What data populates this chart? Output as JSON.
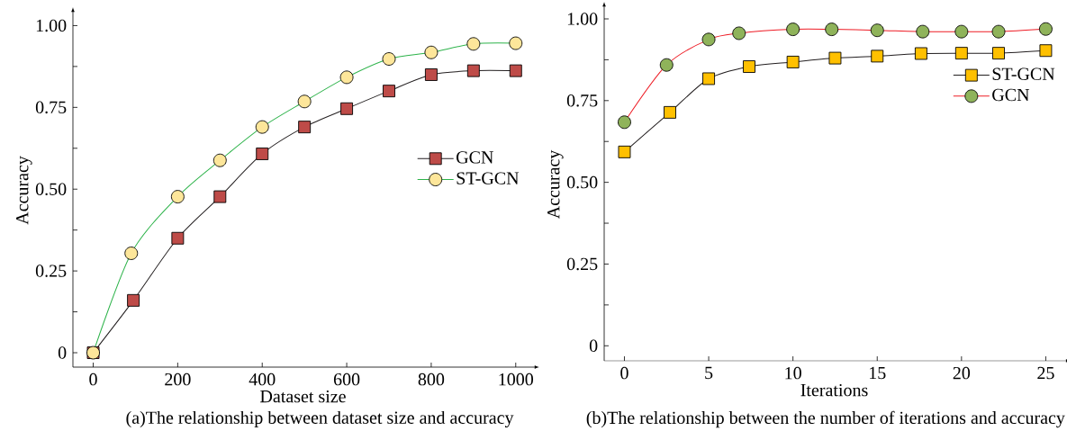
{
  "chart_data": [
    {
      "type": "line",
      "xlabel": "Dataset size",
      "ylabel": "Accuracy",
      "annotations": [
        "(a)The relationship between dataset size and accuracy"
      ],
      "xlim": [
        -48,
        1041
      ],
      "xticks": [
        0,
        200,
        400,
        600,
        800,
        1000
      ],
      "ylim": [
        -0.044,
        1.037
      ],
      "yticks": [
        {
          "value": 0,
          "label": "0"
        },
        {
          "value": 0.125,
          "label": null
        },
        {
          "value": 0.25,
          "label": "0.25"
        },
        {
          "value": 0.375,
          "label": null
        },
        {
          "value": 0.5,
          "label": "0.50"
        },
        {
          "value": 0.625,
          "label": null
        },
        {
          "value": 0.75,
          "label": "0.75"
        },
        {
          "value": 0.875,
          "label": null
        },
        {
          "value": 1,
          "label": "1.00"
        }
      ],
      "legend": "right",
      "series": [
        {
          "name": "GCN",
          "color": "#be4b48",
          "marker": "square",
          "x": [
            0,
            95,
            200,
            300,
            400,
            500,
            600,
            700,
            800,
            900,
            1000
          ],
          "values": [
            0,
            0.16,
            0.35,
            0.477,
            0.608,
            0.69,
            0.746,
            0.8,
            0.85,
            0.862,
            0.862
          ]
        },
        {
          "name": "ST-GCN",
          "color": "#fde69a",
          "marker": "circle",
          "x": [
            0,
            90,
            200,
            300,
            400,
            500,
            600,
            700,
            800,
            900,
            1000
          ],
          "values": [
            0,
            0.304,
            0.477,
            0.588,
            0.69,
            0.768,
            0.842,
            0.898,
            0.918,
            0.944,
            0.946
          ]
        }
      ]
    },
    {
      "type": "line",
      "xlabel": "Iterations",
      "ylabel": "Accuracy",
      "annotations": [
        "(b)The relationship between the number of iterations and accuracy"
      ],
      "xlim": [
        -1.2,
        26.1
      ],
      "xticks": [
        0,
        5,
        10,
        15,
        20,
        25
      ],
      "ylim": [
        -0.046,
        1.033
      ],
      "yticks": [
        {
          "value": 0,
          "label": "0"
        },
        {
          "value": 0.125,
          "label": null
        },
        {
          "value": 0.25,
          "label": "0.25"
        },
        {
          "value": 0.375,
          "label": null
        },
        {
          "value": 0.5,
          "label": "0.50"
        },
        {
          "value": 0.625,
          "label": null
        },
        {
          "value": 0.75,
          "label": "0.75"
        },
        {
          "value": 0.875,
          "label": null
        },
        {
          "value": 1,
          "label": "1.00"
        }
      ],
      "legend": "top right",
      "series": [
        {
          "name": "ST-GCN",
          "color": "#ffc000",
          "marker": "square",
          "x": [
            0,
            2.7,
            5,
            7.4,
            10,
            12.5,
            15,
            17.6,
            20,
            22.2,
            25
          ],
          "values": [
            0.593,
            0.714,
            0.817,
            0.854,
            0.868,
            0.88,
            0.886,
            0.894,
            0.895,
            0.895,
            0.903
          ]
        },
        {
          "name": "GCN",
          "color": "#8fb35a",
          "marker": "circle",
          "x": [
            0,
            2.5,
            5,
            6.8,
            10,
            12.3,
            15,
            17.7,
            20,
            22.2,
            25
          ],
          "values": [
            0.684,
            0.859,
            0.937,
            0.956,
            0.968,
            0.968,
            0.965,
            0.961,
            0.961,
            0.961,
            0.969
          ]
        }
      ]
    }
  ]
}
